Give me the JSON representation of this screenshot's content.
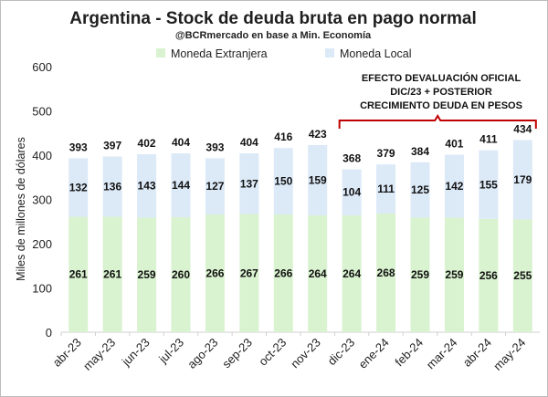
{
  "chart_data": {
    "type": "bar",
    "stacked": true,
    "title": "Argentina - Stock de deuda bruta en pago normal",
    "subtitle": "@BCRmercado en base a Min. Economía",
    "ylabel": "Miles de millones de dólares",
    "ylim": [
      0,
      600
    ],
    "yticks": [
      0,
      100,
      200,
      300,
      400,
      500,
      600
    ],
    "grid": false,
    "legend_position": "top",
    "categories": [
      "abr-23",
      "may-23",
      "jun-23",
      "jul-23",
      "ago-23",
      "sep-23",
      "oct-23",
      "nov-23",
      "dic-23",
      "ene-24",
      "feb-24",
      "mar-24",
      "abr-24",
      "may-24"
    ],
    "series": [
      {
        "name": "Moneda Extranjera",
        "color": "#d9f2d0",
        "values": [
          261,
          261,
          259,
          260,
          266,
          267,
          266,
          264,
          264,
          268,
          259,
          259,
          256,
          255
        ]
      },
      {
        "name": "Moneda Local",
        "color": "#dce9f7",
        "values": [
          132,
          136,
          143,
          144,
          127,
          137,
          150,
          159,
          104,
          111,
          125,
          142,
          155,
          179
        ]
      }
    ],
    "totals": [
      393,
      397,
      402,
      404,
      393,
      404,
      416,
      423,
      368,
      379,
      384,
      401,
      411,
      434
    ],
    "annotation": {
      "lines": [
        "EFECTO DEVALUACIÓN OFICIAL",
        "DIC/23 + POSTERIOR",
        "CRECIMIENTO DEUDA EN PESOS"
      ],
      "bracket_color": "#c00000",
      "from_category": "dic-23",
      "to_category": "may-24"
    }
  }
}
